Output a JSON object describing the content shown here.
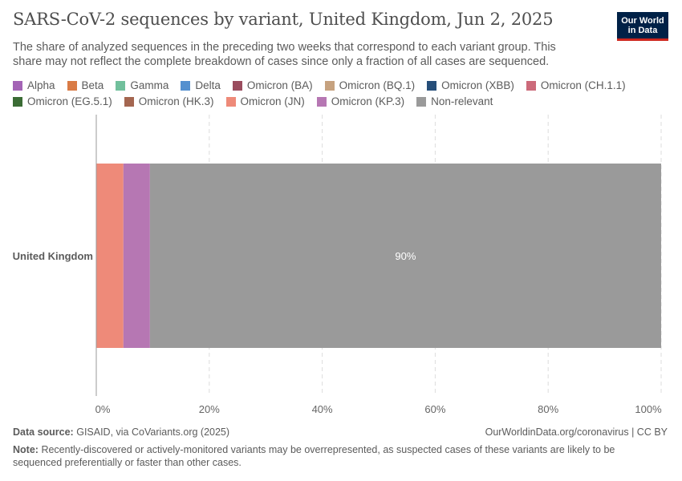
{
  "header": {
    "title": "SARS-CoV-2 sequences by variant, United Kingdom, Jun 2, 2025",
    "subtitle": "The share of analyzed sequences in the preceding two weeks that correspond to each variant group. This share may not reflect the complete breakdown of cases since only a fraction of all cases are sequenced.",
    "logo_line1": "Our World",
    "logo_line2": "in Data"
  },
  "colors": {
    "logo_bg": "#002147",
    "logo_accent": "#ce261e"
  },
  "legend": [
    {
      "label": "Alpha",
      "color": "#a464b6"
    },
    {
      "label": "Beta",
      "color": "#d97b46"
    },
    {
      "label": "Gamma",
      "color": "#71c09c"
    },
    {
      "label": "Delta",
      "color": "#5490cf"
    },
    {
      "label": "Omicron (BA)",
      "color": "#9a4c5e"
    },
    {
      "label": "Omicron (BQ.1)",
      "color": "#c6a27f"
    },
    {
      "label": "Omicron (XBB)",
      "color": "#264e79"
    },
    {
      "label": "Omicron (CH.1.1)",
      "color": "#cc6a7a"
    },
    {
      "label": "Omicron (EG.5.1)",
      "color": "#3b6c35"
    },
    {
      "label": "Omicron (HK.3)",
      "color": "#a46650"
    },
    {
      "label": "Omicron (JN)",
      "color": "#ee8a79"
    },
    {
      "label": "Omicron (KP.3)",
      "color": "#b677b3"
    },
    {
      "label": "Non-relevant",
      "color": "#9a9a9a"
    }
  ],
  "chart_data": {
    "type": "bar",
    "orientation": "horizontal",
    "stacked": true,
    "categories": [
      "United Kingdom"
    ],
    "series": [
      {
        "name": "Omicron (JN)",
        "color": "#ee8a79",
        "values": [
          4.8
        ]
      },
      {
        "name": "Omicron (KP.3)",
        "color": "#b677b3",
        "values": [
          4.7
        ]
      },
      {
        "name": "Non-relevant",
        "color": "#9a9a9a",
        "values": [
          90.5
        ],
        "label": "90%"
      }
    ],
    "xlim": [
      0,
      100
    ],
    "xticks": [
      "0%",
      "20%",
      "40%",
      "60%",
      "80%",
      "100%"
    ],
    "xtick_values": [
      0,
      20,
      40,
      60,
      80,
      100
    ],
    "grid": true
  },
  "footer": {
    "source_label": "Data source:",
    "source_text": "GISAID, via CoVariants.org (2025)",
    "url": "OurWorldinData.org/coronavirus | CC BY",
    "note_label": "Note:",
    "note_text": "Recently-discovered or actively-monitored variants may be overrepresented, as suspected cases of these variants are likely to be sequenced preferentially or faster than other cases."
  }
}
